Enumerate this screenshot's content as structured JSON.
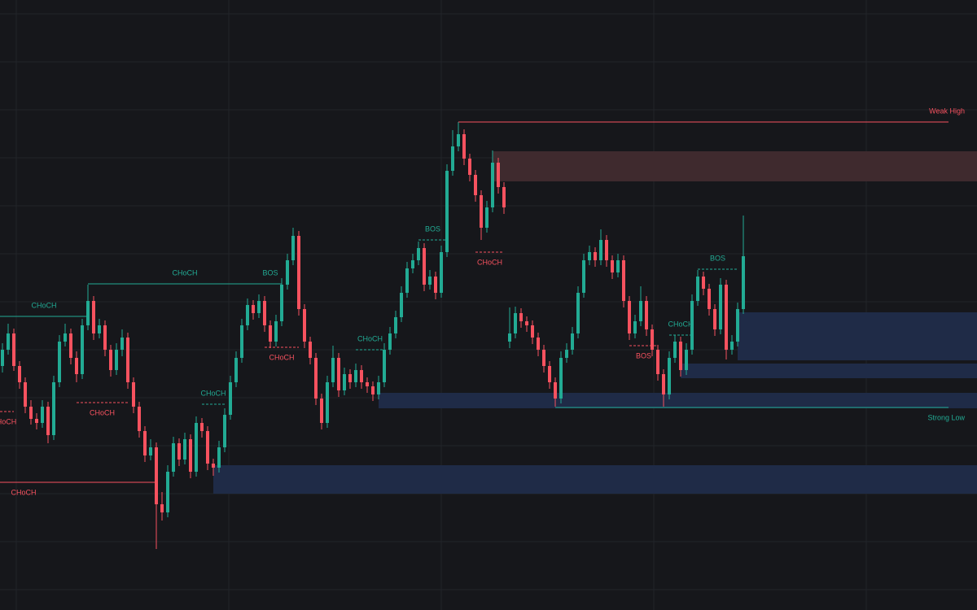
{
  "chart_data": {
    "type": "candlestick",
    "ylim": [
      0,
      750
    ],
    "up_color": "#22ab94",
    "down_color": "#f7525f",
    "zone_colors": {
      "bull": "#1f2b47",
      "bear": "#3f2a2e"
    },
    "candles": [
      [
        300,
        328,
        292,
        320
      ],
      [
        320,
        352,
        314,
        340
      ],
      [
        340,
        346,
        294,
        300
      ],
      [
        300,
        306,
        272,
        280
      ],
      [
        280,
        286,
        242,
        250
      ],
      [
        250,
        258,
        228,
        235
      ],
      [
        235,
        242,
        222,
        230
      ],
      [
        230,
        258,
        224,
        250
      ],
      [
        250,
        256,
        205,
        215
      ],
      [
        215,
        288,
        209,
        280
      ],
      [
        280,
        338,
        274,
        330
      ],
      [
        330,
        352,
        324,
        340
      ],
      [
        340,
        346,
        302,
        310
      ],
      [
        310,
        318,
        280,
        290
      ],
      [
        290,
        358,
        284,
        350
      ],
      [
        350,
        400,
        344,
        380
      ],
      [
        380,
        386,
        332,
        340
      ],
      [
        340,
        358,
        334,
        350
      ],
      [
        350,
        356,
        312,
        320
      ],
      [
        320,
        326,
        287,
        295
      ],
      [
        295,
        328,
        289,
        320
      ],
      [
        320,
        345,
        312,
        335
      ],
      [
        335,
        341,
        272,
        280
      ],
      [
        280,
        286,
        242,
        250
      ],
      [
        250,
        256,
        212,
        220
      ],
      [
        220,
        226,
        182,
        190
      ],
      [
        190,
        210,
        184,
        200
      ],
      [
        200,
        206,
        75,
        130
      ],
      [
        130,
        145,
        110,
        120
      ],
      [
        120,
        178,
        114,
        170
      ],
      [
        170,
        213,
        164,
        205
      ],
      [
        205,
        211,
        177,
        185
      ],
      [
        185,
        218,
        179,
        210
      ],
      [
        210,
        216,
        162,
        170
      ],
      [
        170,
        238,
        164,
        230
      ],
      [
        230,
        236,
        212,
        220
      ],
      [
        220,
        226,
        172,
        180
      ],
      [
        180,
        186,
        165,
        175
      ],
      [
        175,
        208,
        169,
        200
      ],
      [
        200,
        248,
        194,
        240
      ],
      [
        240,
        288,
        234,
        280
      ],
      [
        280,
        318,
        274,
        310
      ],
      [
        310,
        358,
        304,
        350
      ],
      [
        350,
        383,
        344,
        375
      ],
      [
        375,
        381,
        357,
        365
      ],
      [
        365,
        388,
        359,
        380
      ],
      [
        380,
        386,
        342,
        350
      ],
      [
        350,
        356,
        322,
        330
      ],
      [
        330,
        363,
        324,
        355
      ],
      [
        355,
        408,
        349,
        400
      ],
      [
        400,
        438,
        394,
        430
      ],
      [
        430,
        470,
        424,
        460
      ],
      [
        460,
        466,
        362,
        370
      ],
      [
        370,
        376,
        322,
        330
      ],
      [
        330,
        336,
        302,
        310
      ],
      [
        310,
        316,
        252,
        260
      ],
      [
        260,
        266,
        222,
        230
      ],
      [
        230,
        288,
        224,
        280
      ],
      [
        280,
        325,
        274,
        310
      ],
      [
        310,
        316,
        262,
        270
      ],
      [
        270,
        298,
        264,
        290
      ],
      [
        290,
        296,
        272,
        280
      ],
      [
        280,
        303,
        274,
        295
      ],
      [
        295,
        301,
        272,
        280
      ],
      [
        280,
        286,
        267,
        275
      ],
      [
        275,
        281,
        257,
        265
      ],
      [
        265,
        288,
        259,
        280
      ],
      [
        280,
        328,
        274,
        320
      ],
      [
        320,
        348,
        314,
        340
      ],
      [
        340,
        368,
        334,
        360
      ],
      [
        360,
        398,
        354,
        390
      ],
      [
        390,
        428,
        384,
        420
      ],
      [
        420,
        438,
        414,
        430
      ],
      [
        430,
        453,
        424,
        445
      ],
      [
        445,
        451,
        392,
        400
      ],
      [
        400,
        418,
        394,
        410
      ],
      [
        410,
        416,
        382,
        390
      ],
      [
        390,
        448,
        384,
        440
      ],
      [
        440,
        548,
        434,
        540
      ],
      [
        540,
        590,
        534,
        570
      ],
      [
        570,
        600,
        564,
        585
      ],
      [
        585,
        591,
        547,
        555
      ],
      [
        555,
        561,
        527,
        535
      ],
      [
        535,
        541,
        502,
        510
      ],
      [
        510,
        516,
        455,
        470
      ],
      [
        470,
        503,
        464,
        495
      ],
      [
        495,
        565,
        489,
        550
      ],
      [
        550,
        556,
        512,
        520
      ],
      [
        520,
        526,
        487,
        495
      ],
      [
        330,
        372,
        322,
        340
      ],
      [
        340,
        373,
        334,
        365
      ],
      [
        365,
        371,
        347,
        355
      ],
      [
        355,
        361,
        342,
        350
      ],
      [
        350,
        356,
        327,
        335
      ],
      [
        335,
        341,
        312,
        320
      ],
      [
        320,
        326,
        292,
        300
      ],
      [
        300,
        306,
        272,
        280
      ],
      [
        280,
        286,
        250,
        260
      ],
      [
        260,
        318,
        254,
        310
      ],
      [
        310,
        328,
        304,
        320
      ],
      [
        320,
        348,
        314,
        340
      ],
      [
        340,
        398,
        334,
        390
      ],
      [
        390,
        438,
        384,
        430
      ],
      [
        430,
        448,
        424,
        440
      ],
      [
        440,
        446,
        422,
        430
      ],
      [
        430,
        468,
        424,
        455
      ],
      [
        455,
        461,
        422,
        430
      ],
      [
        430,
        436,
        407,
        415
      ],
      [
        415,
        438,
        409,
        430
      ],
      [
        430,
        436,
        372,
        380
      ],
      [
        380,
        386,
        332,
        340
      ],
      [
        340,
        363,
        334,
        355
      ],
      [
        355,
        398,
        349,
        380
      ],
      [
        380,
        386,
        337,
        345
      ],
      [
        345,
        351,
        312,
        320
      ],
      [
        320,
        326,
        282,
        290
      ],
      [
        290,
        296,
        250,
        265
      ],
      [
        265,
        318,
        259,
        310
      ],
      [
        310,
        338,
        304,
        330
      ],
      [
        330,
        336,
        287,
        295
      ],
      [
        295,
        328,
        289,
        320
      ],
      [
        320,
        388,
        314,
        380
      ],
      [
        380,
        418,
        374,
        410
      ],
      [
        410,
        416,
        387,
        395
      ],
      [
        395,
        401,
        362,
        370
      ],
      [
        370,
        376,
        337,
        345
      ],
      [
        345,
        408,
        339,
        400
      ],
      [
        400,
        406,
        308,
        320
      ],
      [
        320,
        338,
        314,
        330
      ],
      [
        330,
        378,
        324,
        370
      ],
      [
        370,
        485,
        364,
        435
      ]
    ],
    "zones": [
      {
        "kind": "bear",
        "top": 564,
        "bottom": 527,
        "from": 86
      },
      {
        "kind": "bull",
        "top": 366,
        "bottom": 307,
        "from": 129
      },
      {
        "kind": "bull",
        "top": 303,
        "bottom": 285,
        "from": 119
      },
      {
        "kind": "bull",
        "top": 267,
        "bottom": 248,
        "from": 66
      },
      {
        "kind": "bull",
        "top": 178,
        "bottom": 143,
        "from": 37
      }
    ],
    "structures": [
      {
        "label": "CHoCH",
        "side": "bull",
        "price": 361,
        "from": 0,
        "to": 15,
        "dashed": false,
        "major": false
      },
      {
        "label": "CHoCH",
        "side": "bull",
        "price": 401,
        "from": 15,
        "to": 49,
        "dashed": false,
        "major": true
      },
      {
        "label": "BOS",
        "side": "bull",
        "price": 401,
        "from": 45,
        "to": 49,
        "dashed": true,
        "major": false
      },
      {
        "label": "HoCH",
        "side": "bear",
        "price": 244,
        "from": 0,
        "to": 2,
        "dashed": true,
        "major": false
      },
      {
        "label": "CHoCH",
        "side": "bear",
        "price": 255,
        "from": 13,
        "to": 22,
        "dashed": true,
        "major": false
      },
      {
        "label": "CHoCH",
        "side": "bear",
        "price": 157,
        "from": 0,
        "to": 27,
        "dashed": false,
        "major": true
      },
      {
        "label": "CHoCH",
        "side": "bull",
        "price": 253,
        "from": 35,
        "to": 39,
        "dashed": true,
        "major": false
      },
      {
        "label": "CHoCH",
        "side": "bear",
        "price": 323,
        "from": 46,
        "to": 52,
        "dashed": true,
        "major": false
      },
      {
        "label": "CHoCH",
        "side": "bull",
        "price": 320,
        "from": 62,
        "to": 67,
        "dashed": true,
        "major": false
      },
      {
        "label": "BOS",
        "side": "bull",
        "price": 455,
        "from": 73,
        "to": 78,
        "dashed": true,
        "major": false
      },
      {
        "label": "CHoCH",
        "side": "bear",
        "price": 440,
        "from": 83,
        "to": 88,
        "dashed": true,
        "major": false
      },
      {
        "label": "BOS",
        "side": "bear",
        "price": 325,
        "from": 110,
        "to": 115,
        "dashed": true,
        "major": false
      },
      {
        "label": "CHoCH",
        "side": "bull",
        "price": 338,
        "from": 117,
        "to": 121,
        "dashed": true,
        "major": false
      },
      {
        "label": "BOS",
        "side": "bull",
        "price": 419,
        "from": 122,
        "to": 129,
        "dashed": true,
        "major": false
      }
    ],
    "levels": [
      {
        "label": "Weak High",
        "side": "bear",
        "price": 600,
        "from": 80
      },
      {
        "label": "Strong Low",
        "side": "bull",
        "price": 249,
        "from": 97
      }
    ]
  }
}
